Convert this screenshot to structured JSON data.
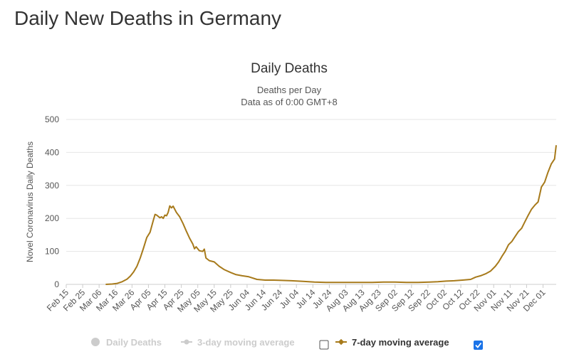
{
  "page": {
    "title": "Daily New Deaths in Germany"
  },
  "colors": {
    "series": "#a77a1b",
    "grid": "#e6e6e6",
    "disabled": "#cccccc",
    "checkbox": "#1a73e8"
  },
  "legend": [
    {
      "label": "Daily Deaths",
      "enabled": false,
      "icon": "circle-icon"
    },
    {
      "label": "3-day moving average",
      "enabled": false,
      "icon": "line-dot-icon"
    },
    {
      "label": "7-day moving average",
      "enabled": true,
      "icon": "line-diamond-icon"
    }
  ],
  "chart_data": {
    "type": "line",
    "title": "Daily Deaths",
    "subtitle": [
      "Deaths per Day",
      "Data as of 0:00 GMT+8"
    ],
    "ylabel": "Novel Coronavirus Daily Deaths",
    "xlabel": "",
    "ylim": [
      0,
      500
    ],
    "yticks": [
      0,
      100,
      200,
      300,
      400,
      500
    ],
    "xlim": [
      "2020-02-15",
      "2020-12-09"
    ],
    "xticks": [
      "Feb 15",
      "Feb 25",
      "Mar 06",
      "Mar 16",
      "Mar 26",
      "Apr 05",
      "Apr 15",
      "Apr 25",
      "May 05",
      "May 15",
      "May 25",
      "Jun 04",
      "Jun 14",
      "Jun 24",
      "Jul 04",
      "Jul 14",
      "Jul 24",
      "Aug 03",
      "Aug 13",
      "Aug 23",
      "Sep 02",
      "Sep 12",
      "Sep 22",
      "Oct 02",
      "Oct 12",
      "Oct 22",
      "Nov 01",
      "Nov 11",
      "Nov 21",
      "Dec 01"
    ],
    "grid": true,
    "legend_position": "bottom",
    "series": [
      {
        "name": "7-day moving average",
        "x": [
          "2020-03-10",
          "2020-03-14",
          "2020-03-17",
          "2020-03-20",
          "2020-03-23",
          "2020-03-25",
          "2020-03-27",
          "2020-03-29",
          "2020-03-31",
          "2020-04-02",
          "2020-04-04",
          "2020-04-06",
          "2020-04-08",
          "2020-04-09",
          "2020-04-10",
          "2020-04-12",
          "2020-04-13",
          "2020-04-14",
          "2020-04-15",
          "2020-04-16",
          "2020-04-17",
          "2020-04-18",
          "2020-04-19",
          "2020-04-20",
          "2020-04-22",
          "2020-04-24",
          "2020-04-26",
          "2020-04-28",
          "2020-04-30",
          "2020-05-02",
          "2020-05-03",
          "2020-05-04",
          "2020-05-06",
          "2020-05-08",
          "2020-05-09",
          "2020-05-10",
          "2020-05-12",
          "2020-05-15",
          "2020-05-18",
          "2020-05-21",
          "2020-05-25",
          "2020-05-28",
          "2020-06-01",
          "2020-06-05",
          "2020-06-10",
          "2020-06-15",
          "2020-06-20",
          "2020-06-25",
          "2020-07-01",
          "2020-07-08",
          "2020-07-15",
          "2020-07-22",
          "2020-07-29",
          "2020-08-05",
          "2020-08-12",
          "2020-08-19",
          "2020-08-26",
          "2020-09-02",
          "2020-09-09",
          "2020-09-16",
          "2020-09-23",
          "2020-09-28",
          "2020-10-03",
          "2020-10-08",
          "2020-10-13",
          "2020-10-18",
          "2020-10-21",
          "2020-10-24",
          "2020-10-27",
          "2020-10-30",
          "2020-11-02",
          "2020-11-04",
          "2020-11-06",
          "2020-11-08",
          "2020-11-10",
          "2020-11-12",
          "2020-11-14",
          "2020-11-16",
          "2020-11-18",
          "2020-11-20",
          "2020-11-22",
          "2020-11-24",
          "2020-11-26",
          "2020-11-28",
          "2020-11-30",
          "2020-12-02",
          "2020-12-04",
          "2020-12-06",
          "2020-12-08",
          "2020-12-09"
        ],
        "values": [
          0,
          1,
          3,
          8,
          16,
          25,
          38,
          55,
          80,
          110,
          142,
          158,
          195,
          212,
          210,
          202,
          205,
          200,
          210,
          208,
          218,
          238,
          232,
          237,
          218,
          205,
          185,
          162,
          140,
          122,
          108,
          114,
          102,
          100,
          107,
          80,
          72,
          68,
          55,
          45,
          36,
          30,
          26,
          23,
          15,
          13,
          13,
          12,
          11,
          9,
          7,
          6,
          6,
          6,
          6,
          6,
          7,
          7,
          6,
          6,
          7,
          8,
          10,
          11,
          13,
          15,
          22,
          26,
          32,
          40,
          55,
          68,
          85,
          100,
          120,
          130,
          145,
          160,
          170,
          190,
          210,
          228,
          240,
          250,
          295,
          310,
          340,
          365,
          380,
          422
        ]
      }
    ]
  }
}
